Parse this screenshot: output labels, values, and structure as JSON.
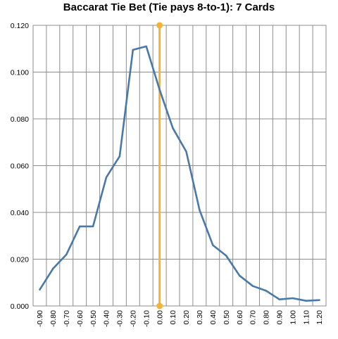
{
  "chart_data": {
    "type": "line",
    "title": "Baccarat Tie Bet (Tie pays 8-to-1): 7 Cards",
    "xlabel": "",
    "ylabel": "",
    "x": [
      -0.9,
      -0.8,
      -0.7,
      -0.6,
      -0.5,
      -0.4,
      -0.3,
      -0.2,
      -0.1,
      0.0,
      0.1,
      0.2,
      0.3,
      0.4,
      0.5,
      0.6,
      0.7,
      0.8,
      0.9,
      1.0,
      1.1,
      1.2
    ],
    "x_tick_labels": [
      "-0.90",
      "-0.80",
      "-0.70",
      "-0.60",
      "-0.50",
      "-0.40",
      "-0.30",
      "-0.20",
      "-0.10",
      "0.00",
      "0.10",
      "0.20",
      "0.30",
      "0.40",
      "0.50",
      "0.60",
      "0.70",
      "0.80",
      "0.90",
      "1.00",
      "1.10",
      "1.20"
    ],
    "series": [
      {
        "values": [
          0.007,
          0.016,
          0.022,
          0.034,
          0.034,
          0.055,
          0.064,
          0.1095,
          0.111,
          0.0925,
          0.076,
          0.066,
          0.041,
          0.026,
          0.0215,
          0.013,
          0.0085,
          0.0065,
          0.0028,
          0.0033,
          0.0022,
          0.0025
        ],
        "color": "#4a78a8"
      }
    ],
    "y_tick_labels": [
      "0.000",
      "0.020",
      "0.040",
      "0.060",
      "0.080",
      "0.100",
      "0.120"
    ],
    "ylim": [
      0,
      0.12
    ],
    "yticks": [
      0,
      0.02,
      0.04,
      0.06,
      0.08,
      0.1,
      0.12
    ],
    "grid": true,
    "legend": "none",
    "reference_line": {
      "x": 0.0,
      "color": "#f5b335"
    },
    "gridline_color": "#8c8c8c",
    "border_color": "#8c8c8c"
  }
}
